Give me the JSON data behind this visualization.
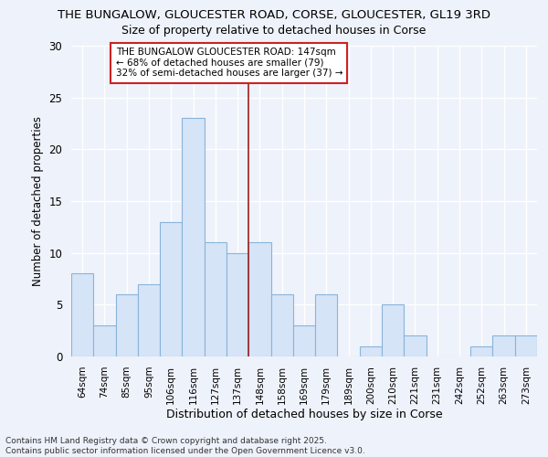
{
  "title_line1": "THE BUNGALOW, GLOUCESTER ROAD, CORSE, GLOUCESTER, GL19 3RD",
  "title_line2": "Size of property relative to detached houses in Corse",
  "xlabel": "Distribution of detached houses by size in Corse",
  "ylabel": "Number of detached properties",
  "categories": [
    "64sqm",
    "74sqm",
    "85sqm",
    "95sqm",
    "106sqm",
    "116sqm",
    "127sqm",
    "137sqm",
    "148sqm",
    "158sqm",
    "169sqm",
    "179sqm",
    "189sqm",
    "200sqm",
    "210sqm",
    "221sqm",
    "231sqm",
    "242sqm",
    "252sqm",
    "263sqm",
    "273sqm"
  ],
  "values": [
    8,
    3,
    6,
    7,
    13,
    23,
    11,
    10,
    11,
    6,
    3,
    6,
    0,
    1,
    5,
    2,
    0,
    0,
    1,
    2,
    2
  ],
  "bar_color": "#d6e4f7",
  "bar_edge_color": "#8ab4d8",
  "vline_index": 8,
  "vline_color": "#9b2020",
  "annotation_text": "THE BUNGALOW GLOUCESTER ROAD: 147sqm\n← 68% of detached houses are smaller (79)\n32% of semi-detached houses are larger (37) →",
  "annotation_box_facecolor": "#ffffff",
  "annotation_box_edgecolor": "#cc2222",
  "ylim": [
    0,
    30
  ],
  "yticks": [
    0,
    5,
    10,
    15,
    20,
    25,
    30
  ],
  "background_color": "#eef2fb",
  "grid_color": "#ffffff",
  "footer_line1": "Contains HM Land Registry data © Crown copyright and database right 2025.",
  "footer_line2": "Contains public sector information licensed under the Open Government Licence v3.0."
}
